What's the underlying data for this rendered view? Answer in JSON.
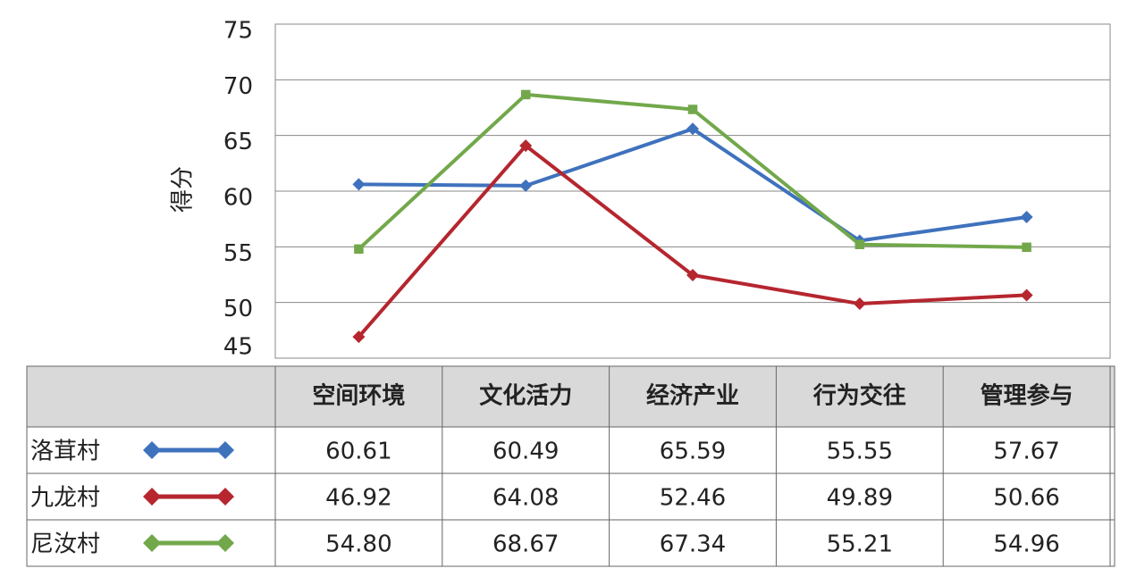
{
  "chart_data": {
    "type": "line",
    "y_label": "得分",
    "categories": [
      "空间环境",
      "文化活力",
      "经济产业",
      "行为交往",
      "管理参与"
    ],
    "series": [
      {
        "name": "洛茸村",
        "color": "#3f72bd",
        "marker": "diamond",
        "values": [
          60.61,
          60.49,
          65.59,
          55.55,
          57.67
        ],
        "value_labels": [
          "60.61",
          "60.49",
          "65.59",
          "55.55",
          "57.67"
        ]
      },
      {
        "name": "九龙村",
        "color": "#b5262f",
        "marker": "diamond",
        "values": [
          46.92,
          64.08,
          52.46,
          49.89,
          50.66
        ],
        "value_labels": [
          "46.92",
          "64.08",
          "52.46",
          "49.89",
          "50.66"
        ]
      },
      {
        "name": "尼汝村",
        "color": "#72a84b",
        "marker": "square",
        "values": [
          54.8,
          68.67,
          67.34,
          55.21,
          54.96
        ],
        "value_labels": [
          "54.80",
          "68.67",
          "67.34",
          "55.21",
          "54.96"
        ]
      }
    ],
    "ylim": [
      45,
      75
    ],
    "yticks": [
      45,
      50,
      55,
      60,
      65,
      70,
      75
    ],
    "grid": true
  }
}
